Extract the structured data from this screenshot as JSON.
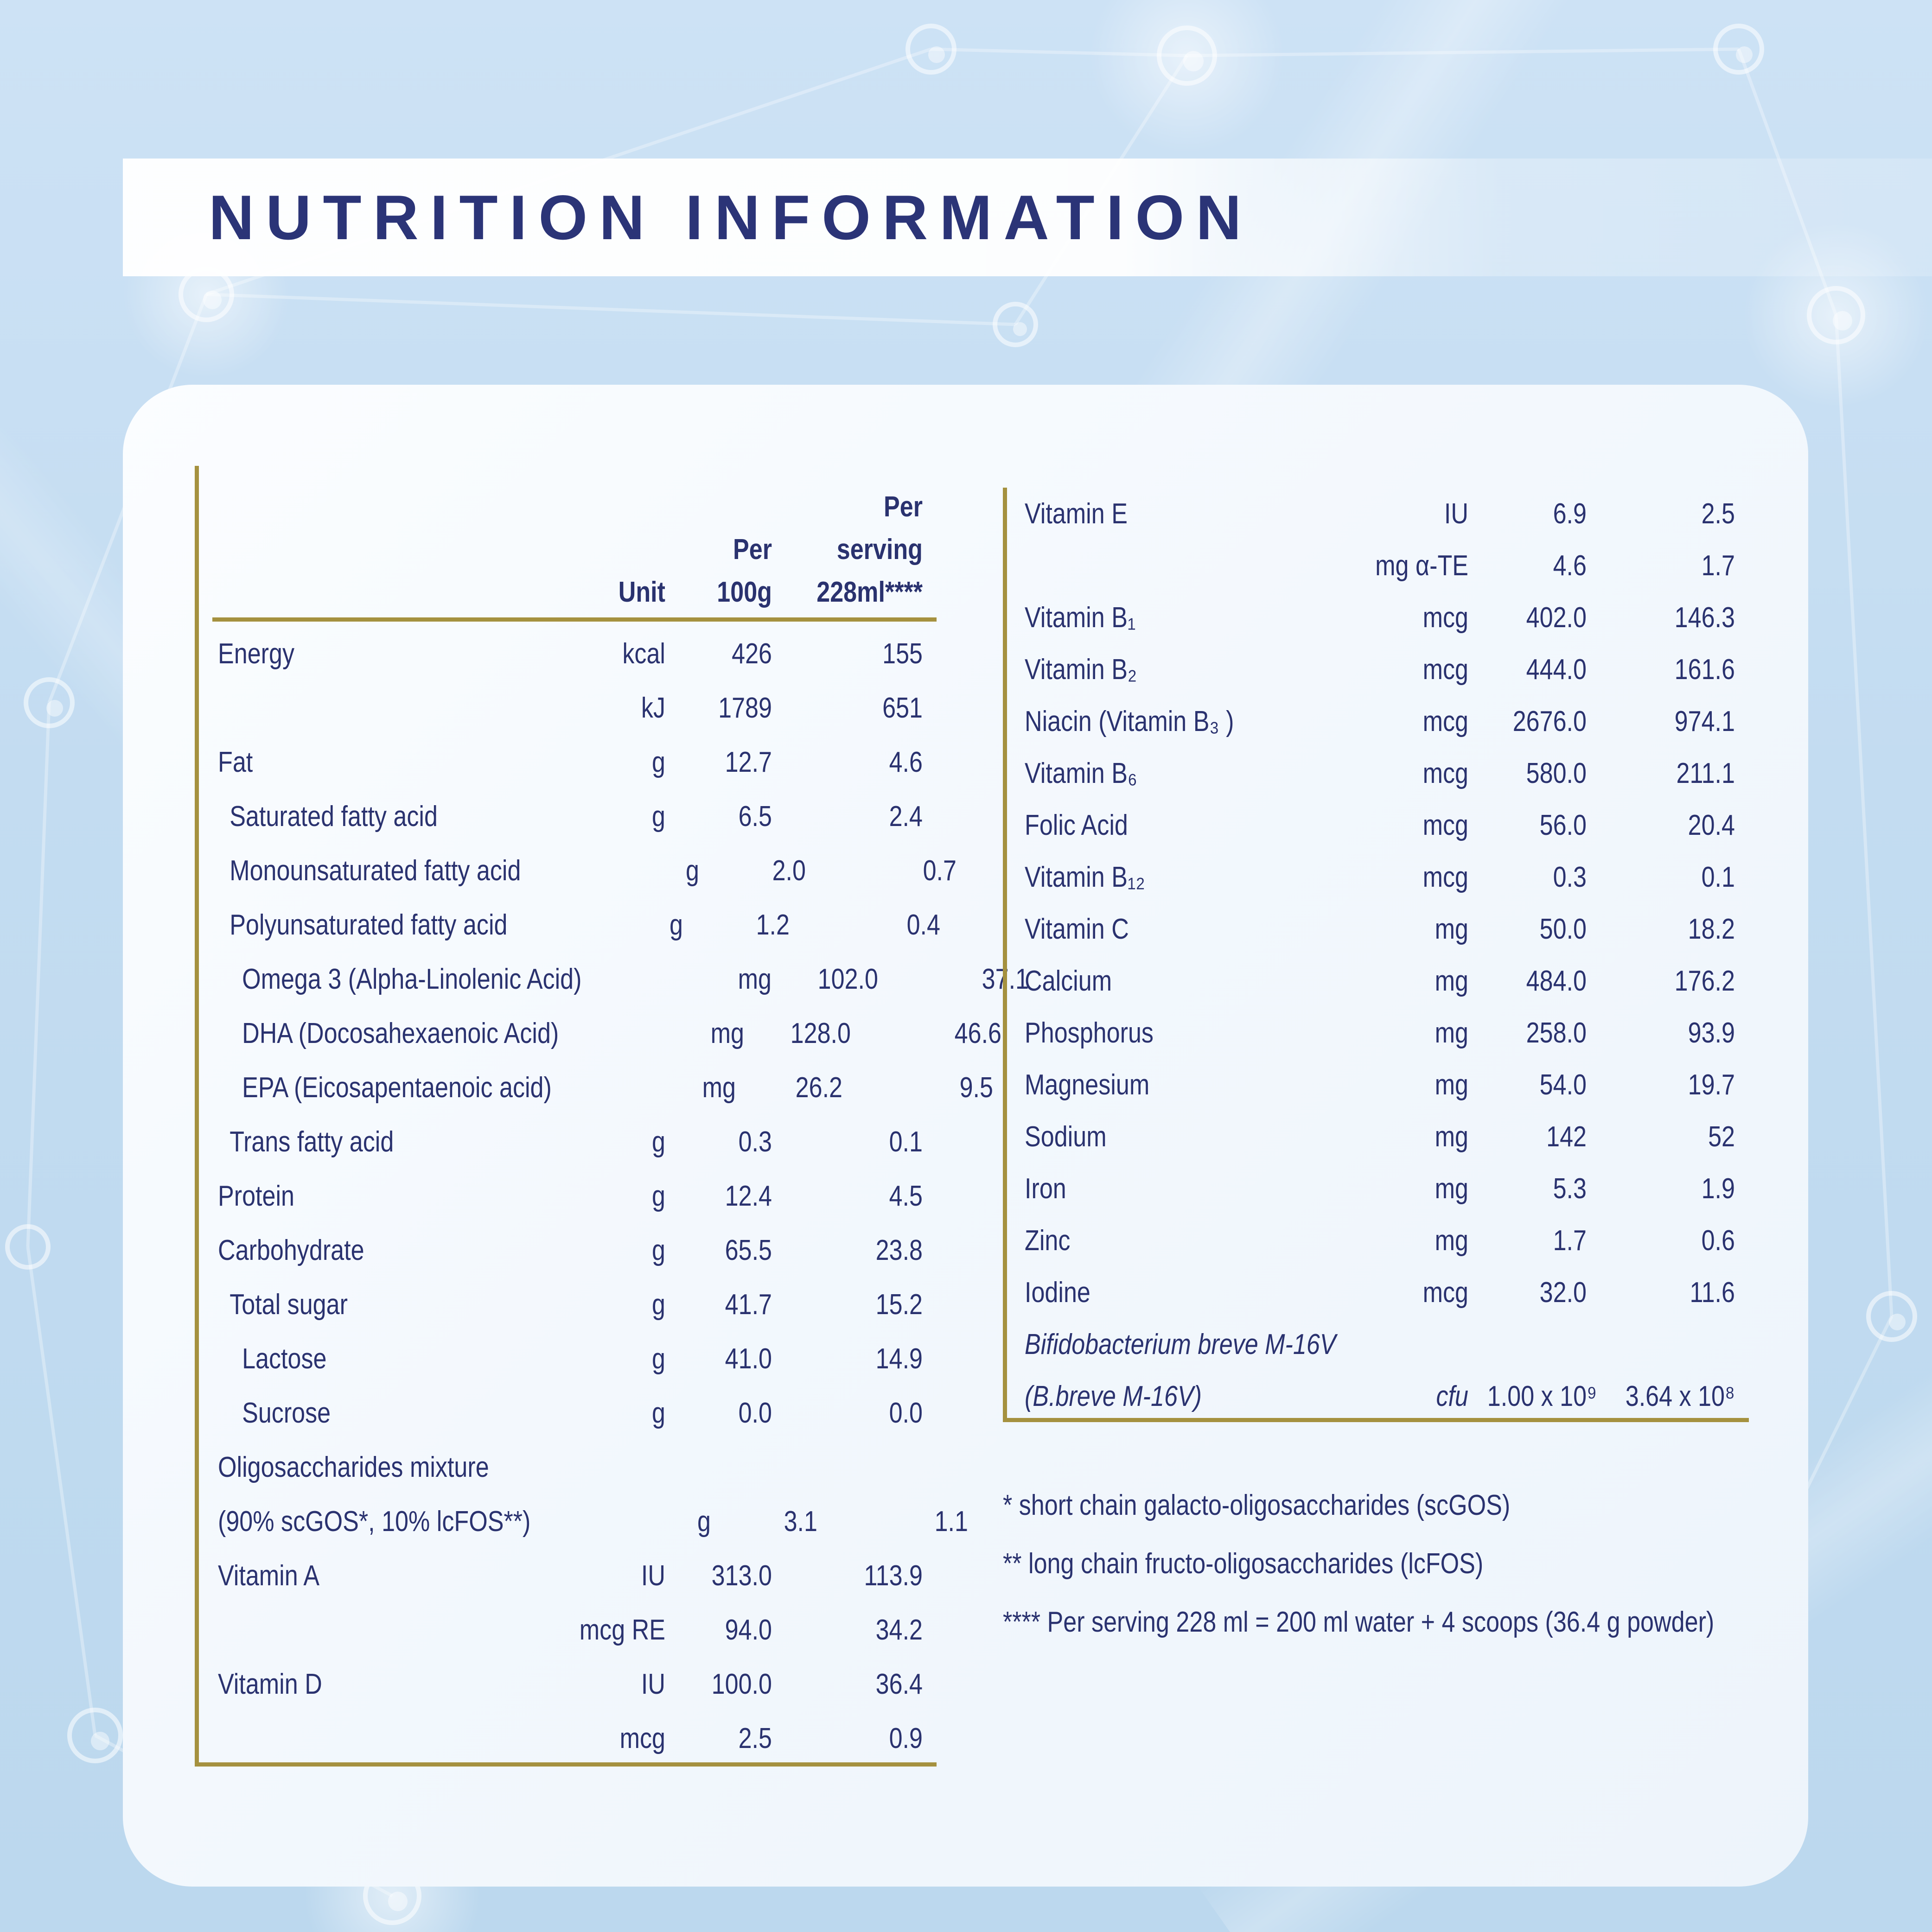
{
  "title": "NUTRITION INFORMATION",
  "colors": {
    "accent_navy": "#2b3477",
    "text_navy": "#2a326f",
    "gold": "#a5913f",
    "background_blue": "#c3dcf1",
    "card_white": "#f3f8fd"
  },
  "left_table": {
    "headers": {
      "unit": [
        "Unit"
      ],
      "per_100g": [
        "Per",
        "100g"
      ],
      "per_serving": [
        "Per",
        "serving",
        "228ml****"
      ]
    },
    "rows": [
      {
        "label": "Energy",
        "indent": 0,
        "unit": "kcal",
        "per_100g": "426",
        "per_serving": "155"
      },
      {
        "label": "",
        "indent": 0,
        "unit": "kJ",
        "per_100g": "1789",
        "per_serving": "651"
      },
      {
        "label": "Fat",
        "indent": 0,
        "unit": "g",
        "per_100g": "12.7",
        "per_serving": "4.6"
      },
      {
        "label": "Saturated fatty acid",
        "indent": 1,
        "unit": "g",
        "per_100g": "6.5",
        "per_serving": "2.4"
      },
      {
        "label": "Monounsaturated fatty acid",
        "indent": 1,
        "unit": "g",
        "per_100g": "2.0",
        "per_serving": "0.7"
      },
      {
        "label": "Polyunsaturated fatty acid",
        "indent": 1,
        "unit": "g",
        "per_100g": "1.2",
        "per_serving": "0.4"
      },
      {
        "label": "Omega 3 (Alpha-Linolenic Acid)",
        "indent": 2,
        "unit": "mg",
        "per_100g": "102.0",
        "per_serving": "37.1"
      },
      {
        "label": "DHA (Docosahexaenoic Acid)",
        "indent": 2,
        "unit": "mg",
        "per_100g": "128.0",
        "per_serving": "46.6"
      },
      {
        "label": "EPA (Eicosapentaenoic acid)",
        "indent": 2,
        "unit": "mg",
        "per_100g": "26.2",
        "per_serving": "9.5"
      },
      {
        "label": "Trans fatty acid",
        "indent": 1,
        "unit": "g",
        "per_100g": "0.3",
        "per_serving": "0.1"
      },
      {
        "label": "Protein",
        "indent": 0,
        "unit": "g",
        "per_100g": "12.4",
        "per_serving": "4.5"
      },
      {
        "label": "Carbohydrate",
        "indent": 0,
        "unit": "g",
        "per_100g": "65.5",
        "per_serving": "23.8"
      },
      {
        "label": "Total sugar",
        "indent": 1,
        "unit": "g",
        "per_100g": "41.7",
        "per_serving": "15.2"
      },
      {
        "label": "Lactose",
        "indent": 2,
        "unit": "g",
        "per_100g": "41.0",
        "per_serving": "14.9"
      },
      {
        "label": "Sucrose",
        "indent": 2,
        "unit": "g",
        "per_100g": "0.0",
        "per_serving": "0.0"
      },
      {
        "label": "Oligosaccharides mixture",
        "indent": 0,
        "unit": "",
        "per_100g": "",
        "per_serving": ""
      },
      {
        "label": "(90% scGOS*, 10% lcFOS**)",
        "indent": 0,
        "unit": "g",
        "per_100g": "3.1",
        "per_serving": "1.1"
      },
      {
        "label": "Vitamin A",
        "indent": 0,
        "unit": "IU",
        "per_100g": "313.0",
        "per_serving": "113.9"
      },
      {
        "label": "",
        "indent": 0,
        "unit": "mcg RE",
        "per_100g": "94.0",
        "per_serving": "34.2"
      },
      {
        "label": "Vitamin D",
        "indent": 0,
        "unit": "IU",
        "per_100g": "100.0",
        "per_serving": "36.4"
      },
      {
        "label": "",
        "indent": 0,
        "unit": "mcg",
        "per_100g": "2.5",
        "per_serving": "0.9"
      }
    ]
  },
  "right_table": {
    "rows": [
      {
        "label": "Vitamin E",
        "unit": "IU",
        "per_100g": "6.9",
        "per_serving": "2.5"
      },
      {
        "label": "",
        "unit": "mg α-TE",
        "per_100g": "4.6",
        "per_serving": "1.7"
      },
      {
        "label": "Vitamin B₁",
        "unit": "mcg",
        "per_100g": "402.0",
        "per_serving": "146.3"
      },
      {
        "label": "Vitamin B₂",
        "unit": "mcg",
        "per_100g": "444.0",
        "per_serving": "161.6"
      },
      {
        "label": "Niacin (Vitamin B₃ )",
        "unit": "mcg",
        "per_100g": "2676.0",
        "per_serving": "974.1"
      },
      {
        "label": "Vitamin B₆",
        "unit": "mcg",
        "per_100g": "580.0",
        "per_serving": "211.1"
      },
      {
        "label": "Folic Acid",
        "unit": "mcg",
        "per_100g": "56.0",
        "per_serving": "20.4"
      },
      {
        "label": "Vitamin B₁₂",
        "unit": "mcg",
        "per_100g": "0.3",
        "per_serving": "0.1"
      },
      {
        "label": "Vitamin C",
        "unit": "mg",
        "per_100g": "50.0",
        "per_serving": "18.2"
      },
      {
        "label": "Calcium",
        "unit": "mg",
        "per_100g": "484.0",
        "per_serving": "176.2"
      },
      {
        "label": "Phosphorus",
        "unit": "mg",
        "per_100g": "258.0",
        "per_serving": "93.9"
      },
      {
        "label": "Magnesium",
        "unit": "mg",
        "per_100g": "54.0",
        "per_serving": "19.7"
      },
      {
        "label": "Sodium",
        "unit": "mg",
        "per_100g": "142",
        "per_serving": "52"
      },
      {
        "label": "Iron",
        "unit": "mg",
        "per_100g": "5.3",
        "per_serving": "1.9"
      },
      {
        "label": "Zinc",
        "unit": "mg",
        "per_100g": "1.7",
        "per_serving": "0.6"
      },
      {
        "label": "Iodine",
        "unit": "mcg",
        "per_100g": "32.0",
        "per_serving": "11.6"
      },
      {
        "label": "Bifidobacterium breve M-16V",
        "italic": true,
        "unit": "",
        "per_100g": "",
        "per_serving": ""
      },
      {
        "label": "(B.breve M-16V)",
        "italic": true,
        "unit": "cfu",
        "per_100g": "1.00 x 10⁹",
        "per_serving": "3.64 x 10⁸"
      }
    ]
  },
  "footnotes": [
    "* short chain galacto-oligosaccharides (scGOS)",
    "** long chain fructo-oligosaccharides (lcFOS)",
    "**** Per serving 228 ml = 200 ml water + 4 scoops (36.4 g powder)"
  ]
}
